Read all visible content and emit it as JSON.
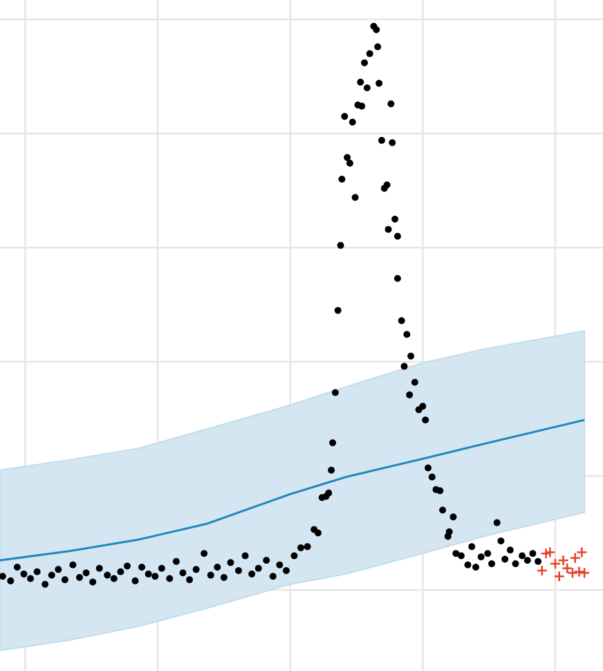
{
  "chart_data": {
    "type": "scatter",
    "xlim": [
      -0.19,
      4.36
    ],
    "ylim": [
      -0.71,
      5.17
    ],
    "xticks": [
      0,
      1,
      2,
      3,
      4
    ],
    "yticks": [
      0,
      1,
      2,
      3,
      4,
      5
    ],
    "grid": true,
    "series": [
      {
        "type": "band",
        "color": "#d3e6f1",
        "x": [
          -0.19,
          0.33,
          0.85,
          1.37,
          2.0,
          2.42,
          3.0,
          3.46,
          4.22
        ],
        "lower": [
          -0.53,
          -0.44,
          -0.32,
          -0.16,
          0.05,
          0.14,
          0.32,
          0.47,
          0.68
        ],
        "upper": [
          1.05,
          1.14,
          1.24,
          1.41,
          1.62,
          1.78,
          1.99,
          2.11,
          2.27
        ]
      },
      {
        "type": "line",
        "color": "#1f86bd",
        "x": [
          -0.19,
          0.33,
          0.85,
          1.37,
          2.0,
          2.42,
          3.0,
          3.46,
          4.22
        ],
        "values": [
          0.26,
          0.34,
          0.44,
          0.58,
          0.84,
          0.99,
          1.15,
          1.28,
          1.49
        ]
      },
      {
        "type": "points",
        "marker": "circle",
        "color": "#000000",
        "x": [
          -0.17,
          -0.11,
          -0.06,
          -0.01,
          0.04,
          0.09,
          0.15,
          0.2,
          0.25,
          0.3,
          0.36,
          0.41,
          0.46,
          0.51,
          0.56,
          0.62,
          0.67,
          0.72,
          0.77,
          0.83,
          0.88,
          0.93,
          0.98,
          1.03,
          1.09,
          1.14,
          1.19,
          1.24,
          1.29,
          1.35,
          1.4,
          1.45,
          1.5,
          1.55,
          1.61,
          1.66,
          1.71,
          1.76,
          1.82,
          1.87,
          1.92,
          1.97,
          2.03,
          2.08,
          2.13,
          2.18,
          2.21,
          2.24,
          2.27,
          2.29,
          2.31,
          2.32,
          2.34,
          2.36,
          2.38,
          2.39,
          2.41,
          2.43,
          2.45,
          2.47,
          2.49,
          2.51,
          2.53,
          2.54,
          2.56,
          2.58,
          2.6,
          2.63,
          2.65,
          2.66,
          2.67,
          2.69,
          2.71,
          2.73,
          2.74,
          2.76,
          2.77,
          2.79,
          2.81,
          2.81,
          2.84,
          2.86,
          2.88,
          2.9,
          2.91,
          2.94,
          2.97,
          3.0,
          3.02,
          3.04,
          3.07,
          3.1,
          3.13,
          3.15,
          3.19,
          3.2,
          3.23,
          3.25,
          3.29,
          3.34,
          3.37,
          3.4,
          3.44,
          3.49,
          3.52,
          3.56,
          3.59,
          3.62,
          3.66,
          3.7,
          3.75,
          3.79,
          3.83,
          3.87
        ],
        "values": [
          0.12,
          0.08,
          0.2,
          0.14,
          0.1,
          0.16,
          0.05,
          0.13,
          0.18,
          0.09,
          0.22,
          0.11,
          0.15,
          0.07,
          0.19,
          0.13,
          0.1,
          0.16,
          0.21,
          0.08,
          0.2,
          0.14,
          0.12,
          0.19,
          0.1,
          0.25,
          0.15,
          0.09,
          0.18,
          0.32,
          0.13,
          0.2,
          0.11,
          0.24,
          0.17,
          0.3,
          0.14,
          0.19,
          0.26,
          0.12,
          0.22,
          0.17,
          0.3,
          0.37,
          0.38,
          0.53,
          0.5,
          0.81,
          0.82,
          0.85,
          1.05,
          1.29,
          1.73,
          2.45,
          3.02,
          3.6,
          4.15,
          3.79,
          3.74,
          4.1,
          3.44,
          4.25,
          4.45,
          4.24,
          4.62,
          4.4,
          4.7,
          4.94,
          4.91,
          4.76,
          4.44,
          3.94,
          3.52,
          3.55,
          3.16,
          4.26,
          3.92,
          3.25,
          3.1,
          2.73,
          2.36,
          1.96,
          2.24,
          1.71,
          2.05,
          1.82,
          1.58,
          1.61,
          1.49,
          1.07,
          0.99,
          0.88,
          0.87,
          0.7,
          0.47,
          0.51,
          0.64,
          0.32,
          0.3,
          0.22,
          0.38,
          0.2,
          0.29,
          0.32,
          0.23,
          0.59,
          0.43,
          0.27,
          0.35,
          0.23,
          0.3,
          0.26,
          0.32,
          0.25
        ]
      },
      {
        "type": "points",
        "marker": "plus",
        "color": "#e8402a",
        "x": [
          3.9,
          3.93,
          3.96,
          4.0,
          4.03,
          4.06,
          4.09,
          4.13,
          4.15,
          4.18,
          4.2,
          4.22
        ],
        "values": [
          0.17,
          0.32,
          0.33,
          0.23,
          0.12,
          0.26,
          0.19,
          0.15,
          0.28,
          0.16,
          0.33,
          0.15
        ]
      }
    ]
  }
}
